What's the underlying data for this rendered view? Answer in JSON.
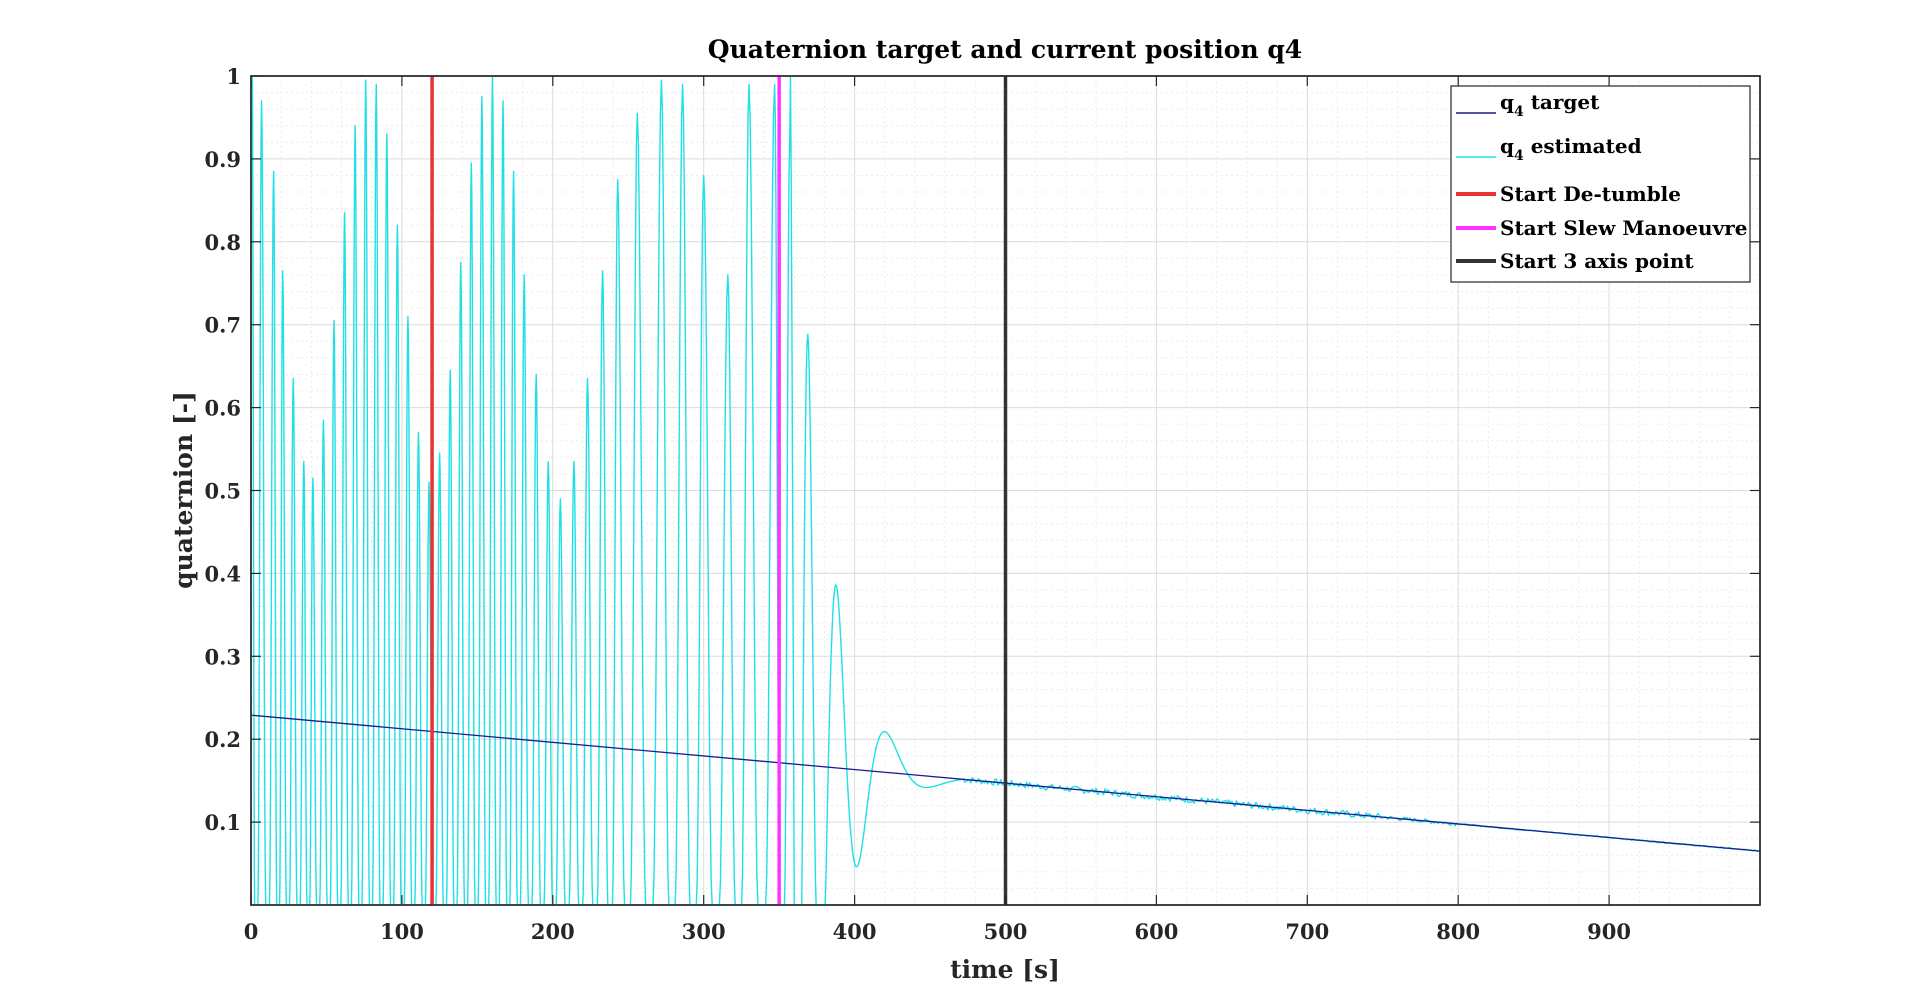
{
  "chart_data": {
    "type": "line",
    "title": "Quaternion target and current position q4",
    "xlabel": "time [s]",
    "ylabel": "quaternion [-]",
    "xlim": [
      0,
      1000
    ],
    "ylim": [
      0,
      1
    ],
    "grid": true,
    "minor_grid": true,
    "xticks": [
      0,
      100,
      200,
      300,
      400,
      500,
      600,
      700,
      800,
      900
    ],
    "xtick_labels": [
      "0",
      "100",
      "200",
      "300",
      "400",
      "500",
      "600",
      "700",
      "800",
      "900"
    ],
    "yticks": [
      0.1,
      0.2,
      0.3,
      0.4,
      0.5,
      0.6,
      0.7,
      0.8,
      0.9,
      1
    ],
    "ytick_labels": [
      "0.1",
      "0.2",
      "0.3",
      "0.4",
      "0.5",
      "0.6",
      "0.7",
      "0.8",
      "0.9",
      "1"
    ],
    "legend_position": "top-right",
    "series": [
      {
        "name": "q4 target",
        "label_base": "q",
        "label_sub": "4",
        "label_rest": " target",
        "color": "#1a1a8c",
        "x": [
          0,
          1000
        ],
        "y": [
          0.229,
          0.065
        ]
      },
      {
        "name": "q4 estimated",
        "label_base": "q",
        "label_sub": "4",
        "label_rest": " estimated",
        "color": "#1fe0e6",
        "peaks": [
          {
            "t": 0,
            "v": 1.0
          },
          {
            "t": 7,
            "v": 0.97
          },
          {
            "t": 15,
            "v": 0.885
          },
          {
            "t": 21,
            "v": 0.765
          },
          {
            "t": 28,
            "v": 0.635
          },
          {
            "t": 35,
            "v": 0.535
          },
          {
            "t": 41,
            "v": 0.515
          },
          {
            "t": 48,
            "v": 0.585
          },
          {
            "t": 55,
            "v": 0.705
          },
          {
            "t": 62,
            "v": 0.835
          },
          {
            "t": 69,
            "v": 0.94
          },
          {
            "t": 76,
            "v": 0.995
          },
          {
            "t": 83,
            "v": 0.99
          },
          {
            "t": 90,
            "v": 0.93
          },
          {
            "t": 97,
            "v": 0.82
          },
          {
            "t": 104,
            "v": 0.71
          },
          {
            "t": 111,
            "v": 0.57
          },
          {
            "t": 118,
            "v": 0.51
          },
          {
            "t": 125,
            "v": 0.545
          },
          {
            "t": 132,
            "v": 0.645
          },
          {
            "t": 139,
            "v": 0.775
          },
          {
            "t": 146,
            "v": 0.895
          },
          {
            "t": 153,
            "v": 0.975
          },
          {
            "t": 160,
            "v": 1.0
          },
          {
            "t": 167,
            "v": 0.97
          },
          {
            "t": 174,
            "v": 0.885
          },
          {
            "t": 181,
            "v": 0.76
          },
          {
            "t": 189,
            "v": 0.64
          },
          {
            "t": 197,
            "v": 0.535
          },
          {
            "t": 205,
            "v": 0.49
          },
          {
            "t": 214,
            "v": 0.535
          },
          {
            "t": 223,
            "v": 0.635
          },
          {
            "t": 233,
            "v": 0.765
          },
          {
            "t": 243,
            "v": 0.875
          },
          {
            "t": 256,
            "v": 0.955
          },
          {
            "t": 272,
            "v": 0.995
          },
          {
            "t": 286,
            "v": 0.99
          },
          {
            "t": 300,
            "v": 0.88
          },
          {
            "t": 316,
            "v": 0.76
          },
          {
            "t": 330,
            "v": 0.99
          },
          {
            "t": 347,
            "v": 0.99
          },
          {
            "t": 357,
            "v": 0.92
          }
        ],
        "settle_start": 350,
        "settle_end": 470
      }
    ],
    "events": [
      {
        "name": "Start De-tumble",
        "x": 120,
        "color": "#e83333"
      },
      {
        "name": "Start Slew Manoeuvre",
        "x": 350,
        "color": "#ff33ff"
      },
      {
        "name": "Start 3 axis point",
        "x": 500,
        "color": "#333333"
      }
    ]
  }
}
